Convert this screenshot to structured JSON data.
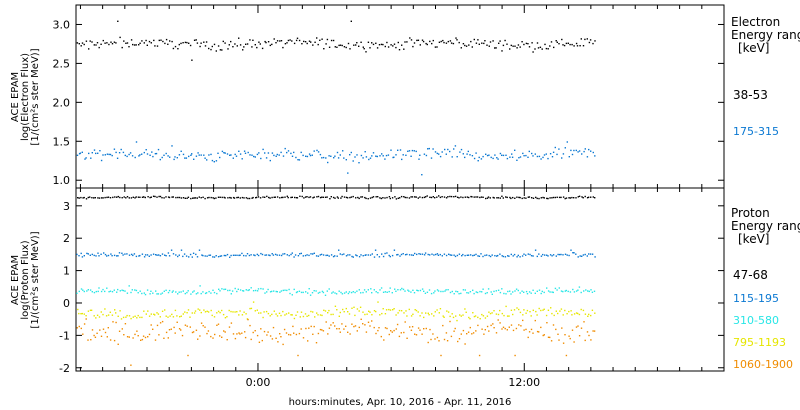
{
  "xaxis": {
    "label": "hours:minutes, Apr. 10, 2016 - Apr. 11, 2016",
    "ticks": [
      {
        "label": "0:00",
        "hour": 0
      },
      {
        "label": "12:00",
        "hour": 12
      }
    ],
    "range_hours": [
      -8.2,
      21.0
    ],
    "data_end_hour": 15.2
  },
  "chart_data": [
    {
      "type": "scatter",
      "title": "Electron",
      "ylabel": [
        "ACE EPAM",
        "log(Electron Flux)",
        "[1/(cm²s ster MeV)]"
      ],
      "ylim": [
        0.9,
        3.25
      ],
      "yticks": [
        "1.0",
        "1.5",
        "2.0",
        "2.5",
        "3.0"
      ],
      "legend": {
        "lines": [
          "Electron",
          "Energy ranges",
          "[keV]"
        ]
      },
      "series": [
        {
          "name": "38-53",
          "color": "#000000",
          "mean": 2.76,
          "jitter": 0.06,
          "spikes": [
            2.55,
            3.05,
            2.95,
            2.6
          ]
        },
        {
          "name": "175-315",
          "color": "#0a78d2",
          "mean": 1.33,
          "jitter": 0.07,
          "spikes": [
            1.1,
            1.5,
            1.08,
            1.45
          ]
        }
      ]
    },
    {
      "type": "scatter",
      "title": "Proton",
      "ylabel": [
        "ACE EPAM",
        "log(Proton Flux)",
        "[1/(cm²s ster MeV)]"
      ],
      "ylim": [
        -2.1,
        3.55
      ],
      "yticks": [
        "-2",
        "-1",
        "0",
        "1",
        "2",
        "3"
      ],
      "legend": {
        "lines": [
          "Proton",
          "Energy ranges",
          "[keV]"
        ]
      },
      "series": [
        {
          "name": "47-68",
          "color": "#000000",
          "mean": 3.28,
          "jitter": 0.03,
          "spikes": []
        },
        {
          "name": "115-195",
          "color": "#0a78d2",
          "mean": 1.5,
          "jitter": 0.05,
          "spikes": [
            1.65
          ]
        },
        {
          "name": "310-580",
          "color": "#28e6e6",
          "mean": 0.38,
          "jitter": 0.08,
          "spikes": [
            0.55
          ]
        },
        {
          "name": "795-1193",
          "color": "#e6e600",
          "mean": -0.3,
          "jitter": 0.15,
          "spikes": [
            0.05
          ]
        },
        {
          "name": "1060-1900",
          "color": "#f08c00",
          "mean": -0.85,
          "jitter": 0.3,
          "spikes": [
            -1.9,
            -1.6
          ]
        }
      ]
    }
  ]
}
